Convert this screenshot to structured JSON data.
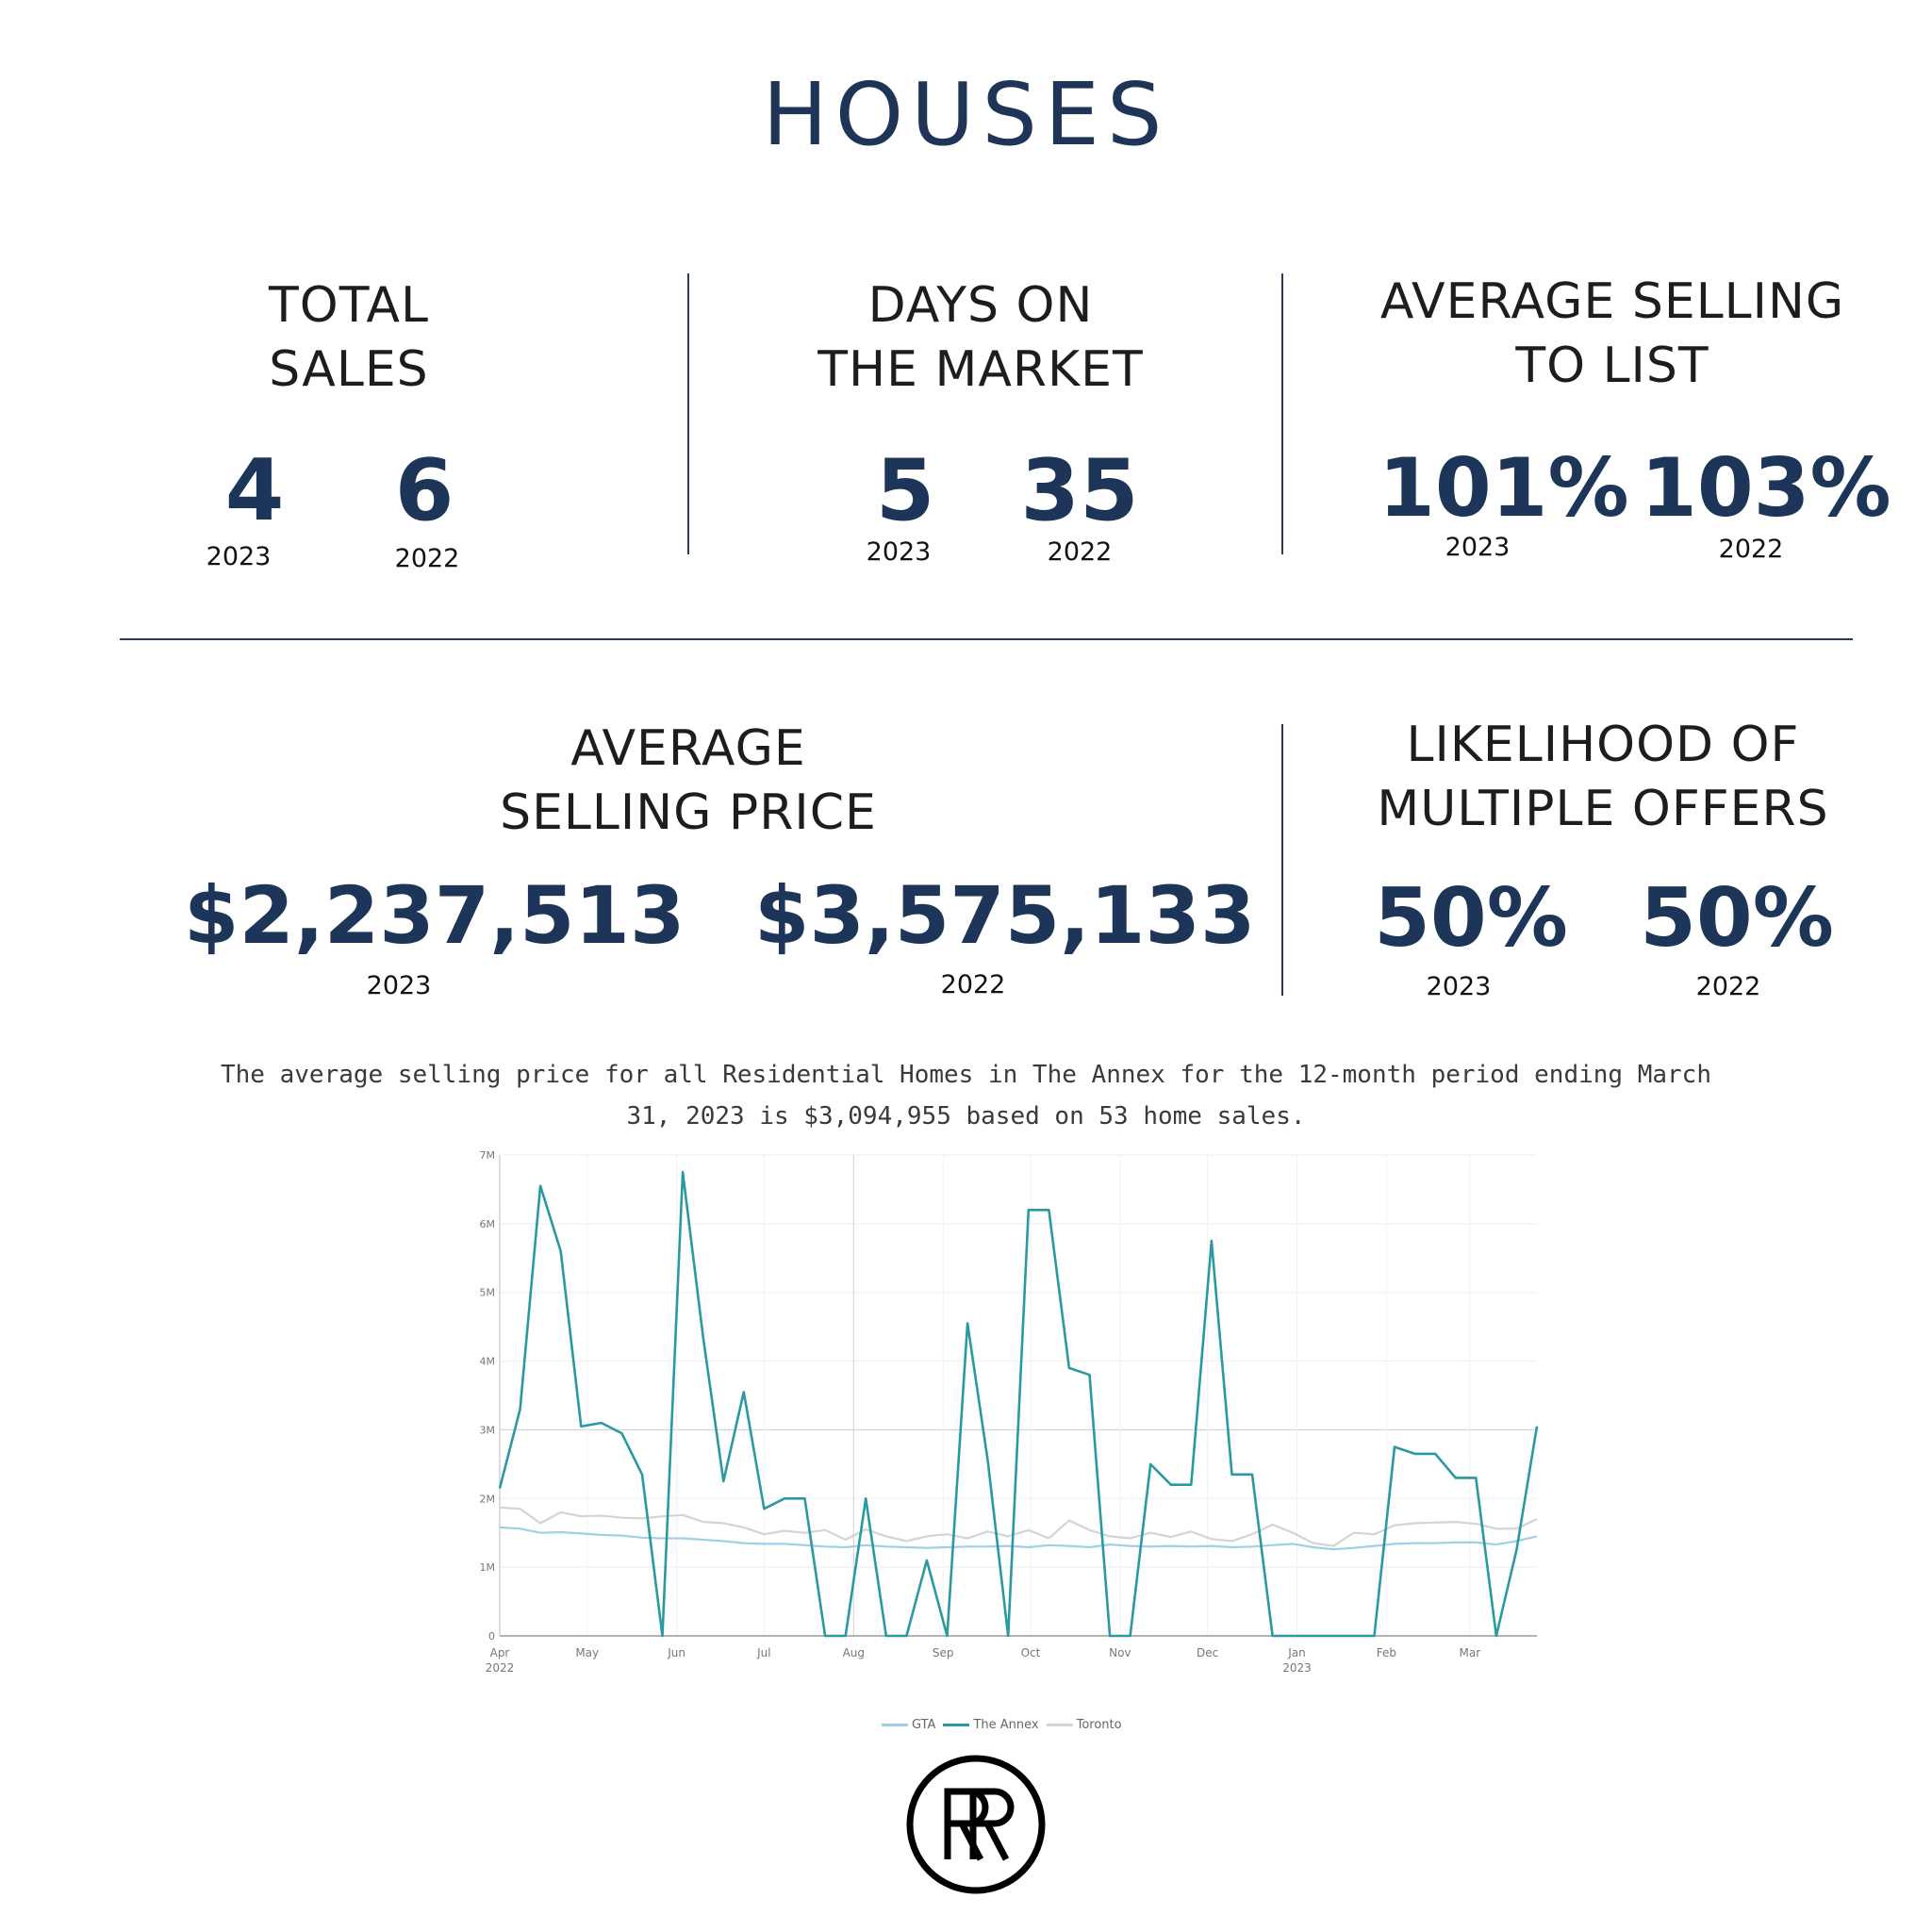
{
  "title": "HOUSES",
  "stats": {
    "total_sales": {
      "label_line1": "TOTAL",
      "label_line2": "SALES",
      "v2023": "4",
      "v2022": "6"
    },
    "days_on_market": {
      "label_line1": "DAYS ON",
      "label_line2": "THE MARKET",
      "v2023": "5",
      "v2022": "35"
    },
    "avg_selling_to_list": {
      "label_line1": "AVERAGE SELLING",
      "label_line2": "TO LIST",
      "v2023": "101%",
      "v2022": "103%"
    },
    "avg_selling_price": {
      "label_line1": "AVERAGE",
      "label_line2": "SELLING PRICE",
      "v2023": "$2,237,513",
      "v2022": "$3,575,133"
    },
    "multiple_offers": {
      "label_line1": "LIKELIHOOD OF",
      "label_line2": "MULTIPLE OFFERS",
      "v2023": "50%",
      "v2022": "50%"
    },
    "year_2023": "2023",
    "year_2022": "2022"
  },
  "caption_line1": "The average selling price for all Residential Homes in The Annex for the 12-month period ending March",
  "caption_line2": "31, 2023 is $3,094,955 based on 53 home sales.",
  "logo_text": "RR",
  "chart_data": {
    "type": "line",
    "ylim": [
      0,
      7000000
    ],
    "yticks": [
      0,
      1000000,
      2000000,
      3000000,
      4000000,
      5000000,
      6000000,
      7000000
    ],
    "ytick_labels": [
      "0",
      "1M",
      "2M",
      "3M",
      "4M",
      "5M",
      "6M",
      "7M"
    ],
    "xlim": [
      0,
      51
    ],
    "xticks": [
      {
        "x": 0,
        "label": "Apr",
        "sub": "2022"
      },
      {
        "x": 4.3,
        "label": "May",
        "sub": ""
      },
      {
        "x": 8.7,
        "label": "Jun",
        "sub": ""
      },
      {
        "x": 13,
        "label": "Jul",
        "sub": ""
      },
      {
        "x": 17.4,
        "label": "Aug",
        "sub": ""
      },
      {
        "x": 21.8,
        "label": "Sep",
        "sub": ""
      },
      {
        "x": 26.1,
        "label": "Oct",
        "sub": ""
      },
      {
        "x": 30.5,
        "label": "Nov",
        "sub": ""
      },
      {
        "x": 34.8,
        "label": "Dec",
        "sub": ""
      },
      {
        "x": 39.2,
        "label": "Jan",
        "sub": "2023"
      },
      {
        "x": 43.6,
        "label": "Feb",
        "sub": ""
      },
      {
        "x": 47.7,
        "label": "Mar",
        "sub": ""
      }
    ],
    "series": [
      {
        "name": "GTA",
        "color": "#9fd0e3",
        "x": [
          0,
          1,
          2,
          3,
          4,
          5,
          6,
          7,
          8,
          9,
          10,
          11,
          12,
          13,
          14,
          15,
          16,
          17,
          18,
          19,
          20,
          21,
          22,
          23,
          24,
          25,
          26,
          27,
          28,
          29,
          30,
          31,
          32,
          33,
          34,
          35,
          36,
          37,
          38,
          39,
          40,
          41,
          42,
          43,
          44,
          45,
          46,
          47,
          48,
          49,
          50,
          51
        ],
        "values": [
          1580000,
          1560000,
          1500000,
          1510000,
          1490000,
          1470000,
          1460000,
          1430000,
          1420000,
          1420000,
          1400000,
          1380000,
          1350000,
          1340000,
          1340000,
          1320000,
          1300000,
          1290000,
          1320000,
          1300000,
          1290000,
          1280000,
          1290000,
          1300000,
          1300000,
          1310000,
          1290000,
          1320000,
          1310000,
          1290000,
          1330000,
          1310000,
          1300000,
          1310000,
          1300000,
          1310000,
          1290000,
          1300000,
          1320000,
          1340000,
          1290000,
          1260000,
          1280000,
          1310000,
          1340000,
          1350000,
          1350000,
          1360000,
          1360000,
          1330000,
          1380000,
          1450000
        ]
      },
      {
        "name": "The Annex",
        "color": "#2a9aa0",
        "x": [
          0,
          1,
          2,
          3,
          4,
          5,
          6,
          7,
          8,
          9,
          10,
          11,
          12,
          13,
          14,
          15,
          16,
          17,
          18,
          19,
          20,
          21,
          22,
          23,
          24,
          25,
          26,
          27,
          28,
          29,
          30,
          31,
          32,
          33,
          34,
          35,
          36,
          37,
          38,
          39,
          40,
          41,
          42,
          43,
          44,
          45,
          46,
          47,
          48,
          49,
          50,
          51
        ],
        "values": [
          2150000,
          3300000,
          6550000,
          5600000,
          3050000,
          3100000,
          2950000,
          2350000,
          0,
          6750000,
          4350000,
          2250000,
          3550000,
          1850000,
          2000000,
          2000000,
          0,
          0,
          2000000,
          0,
          0,
          1100000,
          0,
          4550000,
          2550000,
          0,
          6200000,
          6200000,
          3900000,
          3800000,
          0,
          0,
          2500000,
          2200000,
          2200000,
          5750000,
          2350000,
          2350000,
          0,
          0,
          0,
          0,
          0,
          0,
          2750000,
          2650000,
          2650000,
          2300000,
          2300000,
          0,
          1250000,
          3050000
        ]
      },
      {
        "name": "Toronto",
        "color": "#d4d4d4",
        "x": [
          0,
          1,
          2,
          3,
          4,
          5,
          6,
          7,
          8,
          9,
          10,
          11,
          12,
          13,
          14,
          15,
          16,
          17,
          18,
          19,
          20,
          21,
          22,
          23,
          24,
          25,
          26,
          27,
          28,
          29,
          30,
          31,
          32,
          33,
          34,
          35,
          36,
          37,
          38,
          39,
          40,
          41,
          42,
          43,
          44,
          45,
          46,
          47,
          48,
          49,
          50,
          51
        ],
        "values": [
          1870000,
          1850000,
          1640000,
          1800000,
          1740000,
          1750000,
          1720000,
          1710000,
          1740000,
          1760000,
          1660000,
          1640000,
          1580000,
          1480000,
          1530000,
          1500000,
          1540000,
          1400000,
          1550000,
          1450000,
          1380000,
          1450000,
          1480000,
          1420000,
          1520000,
          1450000,
          1540000,
          1420000,
          1680000,
          1540000,
          1450000,
          1420000,
          1500000,
          1440000,
          1520000,
          1410000,
          1380000,
          1480000,
          1620000,
          1500000,
          1350000,
          1310000,
          1500000,
          1480000,
          1610000,
          1640000,
          1650000,
          1660000,
          1630000,
          1560000,
          1560000,
          1700000
        ]
      }
    ]
  }
}
